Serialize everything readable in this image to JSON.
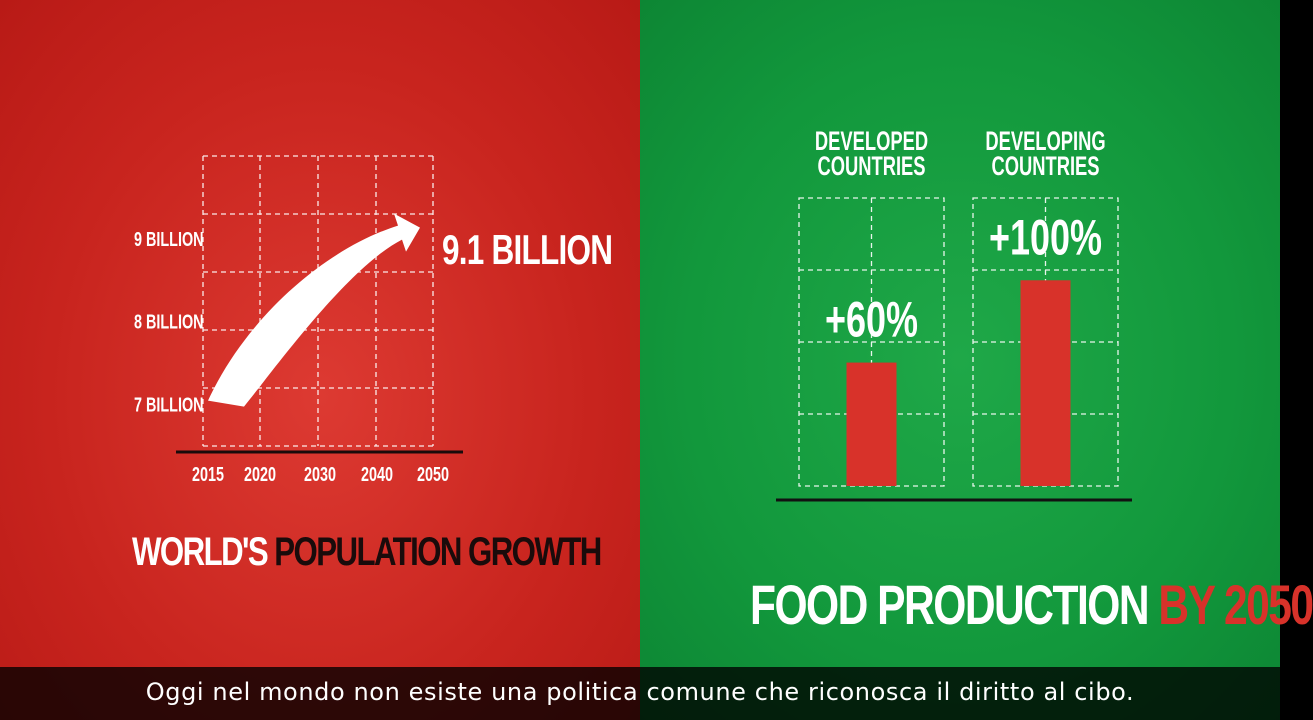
{
  "colors": {
    "left_bg": "#d22b24",
    "right_bg": "#16a040",
    "bar": "#d8322a",
    "white": "#ffffff",
    "dark": "#1a0b0b"
  },
  "population_chart": {
    "title_part1": "WORLD'S",
    "title_part2": "POPULATION GROWTH",
    "x_ticks": [
      "2015",
      "2020",
      "2030",
      "2040",
      "2050"
    ],
    "y_ticks": [
      "9 BILLION",
      "8 BILLION",
      "7 BILLION"
    ],
    "annotation": "9.1 BILLION"
  },
  "food_chart": {
    "title_part1": "FOOD PRODUCTION",
    "title_part2": "BY 2050"
  },
  "subtitle": "Oggi nel mondo non esiste una politica comune che riconosca il diritto al cibo.",
  "chart_data": [
    {
      "type": "line",
      "title": "WORLD'S POPULATION GROWTH",
      "xlabel": "",
      "ylabel": "",
      "x": [
        2015,
        2050
      ],
      "y": [
        7.0,
        9.1
      ],
      "x_ticks": [
        "2015",
        "2020",
        "2030",
        "2040",
        "2050"
      ],
      "y_ticks": [
        "7 BILLION",
        "8 BILLION",
        "9 BILLION"
      ],
      "ylim": [
        6.5,
        10
      ],
      "grid": true,
      "annotation": "9.1 BILLION"
    },
    {
      "type": "bar",
      "title": "FOOD PRODUCTION BY 2050",
      "xlabel": "",
      "ylabel": "",
      "categories": [
        "DEVELOPED COUNTRIES",
        "DEVELOPING COUNTRIES"
      ],
      "category_lines": [
        [
          "DEVELOPED",
          "COUNTRIES"
        ],
        [
          "DEVELOPING",
          "COUNTRIES"
        ]
      ],
      "values": [
        60,
        100
      ],
      "labels": [
        "+60%",
        "+100%"
      ],
      "ylim": [
        0,
        140
      ],
      "grid": true
    }
  ]
}
